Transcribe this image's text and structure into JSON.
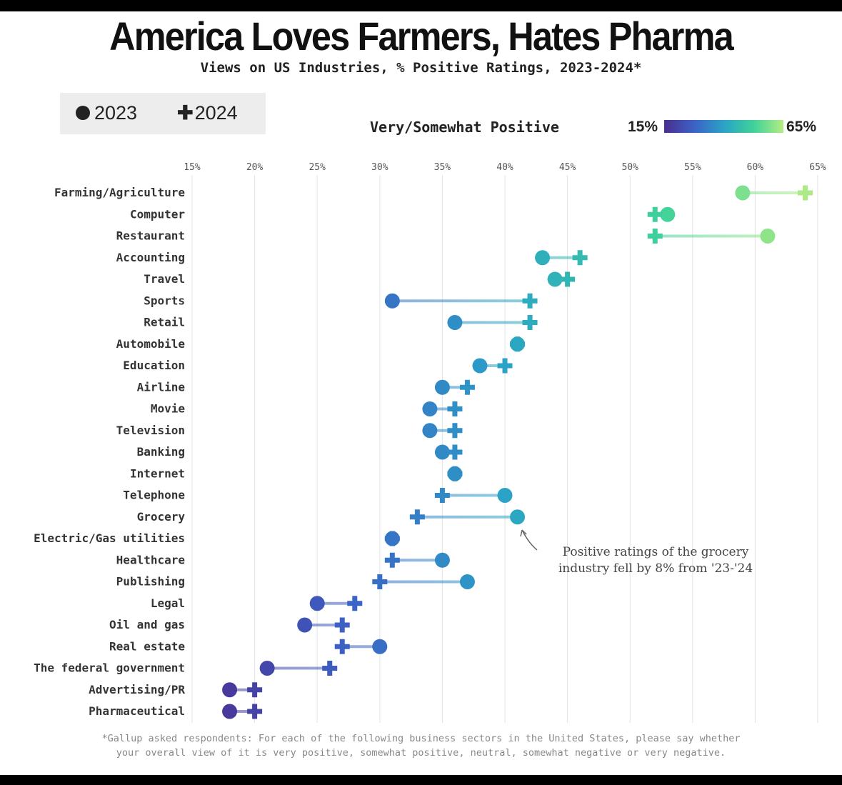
{
  "title": "America Loves Farmers, Hates Pharma",
  "subtitle": "Views on US Industries, % Positive Ratings, 2023-2024*",
  "legend": {
    "label_2023": "2023",
    "label_2024": "2024"
  },
  "color_scale": {
    "label": "Very/Somewhat Positive",
    "min_label": "15%",
    "max_label": "65%",
    "colors": [
      "#4b2e8f",
      "#3b62c6",
      "#2aa3c6",
      "#3fd29a",
      "#b4ec82"
    ]
  },
  "annotation": {
    "line1": "Positive ratings of the grocery",
    "line2": "industry fell by 8% from '23-'24"
  },
  "footnote": {
    "line1": "*Gallup asked respondents: For each of the following business sectors in the United States, please say whether",
    "line2": "your overall view of it is very positive, somewhat positive, neutral, somewhat negative or very negative."
  },
  "chart_data": {
    "type": "dumbbell",
    "title": "America Loves Farmers, Hates Pharma",
    "xlabel": "",
    "ylabel": "",
    "xlim": [
      15,
      65
    ],
    "x_ticks": [
      "15%",
      "20%",
      "25%",
      "30%",
      "35%",
      "40%",
      "45%",
      "50%",
      "55%",
      "60%",
      "65%"
    ],
    "grid": true,
    "categories": [
      "Farming/Agriculture",
      "Computer",
      "Restaurant",
      "Accounting",
      "Travel",
      "Sports",
      "Retail",
      "Automobile",
      "Education",
      "Airline",
      "Movie",
      "Television",
      "Banking",
      "Internet",
      "Telephone",
      "Grocery",
      "Electric/Gas utilities",
      "Healthcare",
      "Publishing",
      "Legal",
      "Oil and gas",
      "Real estate",
      "The federal government",
      "Advertising/PR",
      "Pharmaceutical"
    ],
    "series": [
      {
        "name": "2023",
        "marker": "circle",
        "values": [
          59,
          53,
          61,
          43,
          44,
          31,
          36,
          41,
          38,
          35,
          34,
          34,
          35,
          36,
          40,
          41,
          31,
          35,
          37,
          25,
          24,
          30,
          21,
          18,
          18
        ]
      },
      {
        "name": "2024",
        "marker": "plus",
        "values": [
          64,
          52,
          52,
          46,
          45,
          42,
          42,
          41,
          40,
          37,
          36,
          36,
          36,
          36,
          35,
          33,
          31,
          31,
          30,
          28,
          27,
          27,
          26,
          20,
          20
        ]
      }
    ]
  }
}
